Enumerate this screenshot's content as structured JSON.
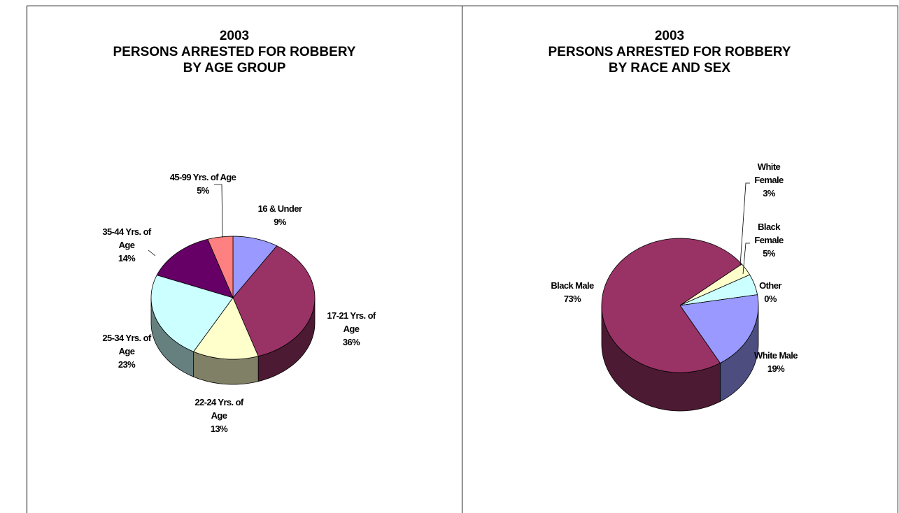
{
  "chart_data": [
    {
      "type": "pie",
      "title": "2003\nPERSONS ARRESTED FOR ROBBERY\nBY AGE GROUP",
      "categories": [
        "16 & Under",
        "17-21 Yrs. of Age",
        "22-24 Yrs. of Age",
        "25-34 Yrs. of Age",
        "35-44 Yrs. of Age",
        "45-99 Yrs. of Age"
      ],
      "values": [
        9,
        36,
        13,
        23,
        14,
        5
      ],
      "value_labels": [
        "9%",
        "36%",
        "13%",
        "23%",
        "14%",
        "5%"
      ],
      "colors": [
        "#9999ff",
        "#993366",
        "#ffffcc",
        "#ccffff",
        "#660066",
        "#ff8080"
      ]
    },
    {
      "type": "pie",
      "title": "2003\nPERSONS ARRESTED FOR ROBBERY\nBY RACE AND SEX",
      "categories": [
        "White Female",
        "Black Female",
        "Other",
        "White Male",
        "Black Male"
      ],
      "values": [
        3,
        5,
        0,
        19,
        73
      ],
      "value_labels": [
        "3%",
        "5%",
        "0%",
        "19%",
        "73%"
      ],
      "colors": [
        "#ffffcc",
        "#ccffff",
        "#ff8080",
        "#9999ff",
        "#993366"
      ]
    }
  ]
}
